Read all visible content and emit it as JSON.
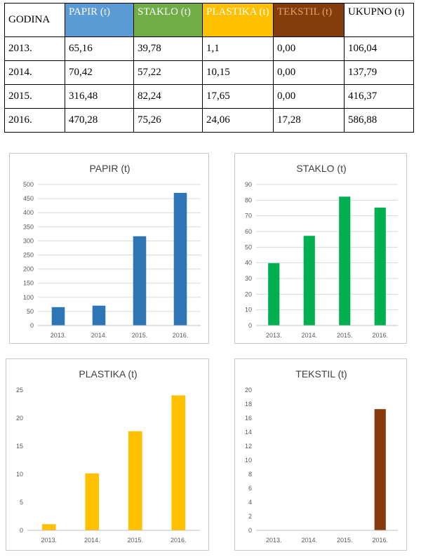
{
  "table": {
    "header": [
      {
        "label": "GODINA",
        "color": "#ffffff",
        "text_color": "#000000"
      },
      {
        "label": "PAPIR (t)",
        "color": "#5b9bd5",
        "text_color": "#ffffff"
      },
      {
        "label": "STAKLO (t)",
        "color": "#70ad47",
        "text_color": "#ffffff"
      },
      {
        "label": "PLASTIKA (t)",
        "color": "#ffc000",
        "text_color": "#ffffff"
      },
      {
        "label": "TEKSTIL (t)",
        "color": "#843c0c",
        "text_color": "#e8a060"
      },
      {
        "label": "UKUPNO (t)",
        "color": "#ffffff",
        "text_color": "#000000"
      }
    ],
    "rows": [
      [
        "2013.",
        "65,16",
        "39,78",
        "1,1",
        "0,00",
        "106,04"
      ],
      [
        "2014.",
        "70,42",
        "57,22",
        "10,15",
        "0,00",
        "137,79"
      ],
      [
        "2015.",
        "316,48",
        "82,24",
        "17,65",
        "0,00",
        "416,37"
      ],
      [
        "2016.",
        "470,28",
        "75,26",
        "24,06",
        "17,28",
        "586,88"
      ]
    ]
  },
  "chart_data": [
    {
      "type": "bar",
      "title": "PAPIR (t)",
      "categories": [
        "2013.",
        "2014.",
        "2015.",
        "2016."
      ],
      "values": [
        65.16,
        70.42,
        316.48,
        470.28
      ],
      "yticks": [
        0,
        50,
        100,
        150,
        200,
        250,
        300,
        350,
        400,
        450,
        500
      ],
      "ylim": [
        0,
        500
      ],
      "grid": true,
      "color": "#2e75b6"
    },
    {
      "type": "bar",
      "title": "STAKLO (t)",
      "categories": [
        "2013.",
        "2014.",
        "2015.",
        "2016."
      ],
      "values": [
        39.78,
        57.22,
        82.24,
        75.26
      ],
      "yticks": [
        0,
        10,
        20,
        30,
        40,
        50,
        60,
        70,
        80,
        90
      ],
      "ylim": [
        0,
        90
      ],
      "grid": true,
      "color": "#00b050"
    },
    {
      "type": "bar",
      "title": "PLASTIKA (t)",
      "categories": [
        "2013.",
        "2014.",
        "2015.",
        "2016."
      ],
      "values": [
        1.1,
        10.15,
        17.65,
        24.06
      ],
      "yticks": [
        0,
        5,
        10,
        15,
        20,
        25
      ],
      "ylim": [
        0,
        25
      ],
      "grid": false,
      "color": "#ffc000"
    },
    {
      "type": "bar",
      "title": "TEKSTIL (t)",
      "categories": [
        "2013.",
        "2014.",
        "2015.",
        "2016."
      ],
      "values": [
        0,
        0,
        0,
        17.28
      ],
      "yticks": [
        0,
        2,
        4,
        6,
        8,
        10,
        12,
        14,
        16,
        18,
        20
      ],
      "ylim": [
        0,
        20
      ],
      "grid": false,
      "color": "#843c0c"
    }
  ]
}
